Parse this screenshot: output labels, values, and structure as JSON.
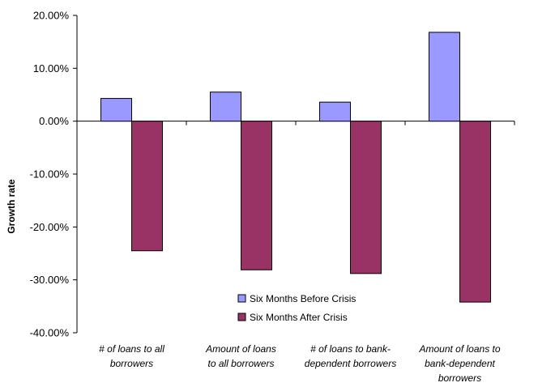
{
  "chart_data": {
    "type": "bar",
    "ylabel": "Growth rate",
    "ylim": [
      -0.4,
      0.2
    ],
    "ytick_step": 0.1,
    "ytick_labels": [
      "20.00%",
      "10.00%",
      "0.00%",
      "-10.00%",
      "-20.00%",
      "-30.00%",
      "-40.00%"
    ],
    "categories": [
      [
        "# of loans to all",
        "borrowers"
      ],
      [
        "Amount of loans",
        "to all borrowers"
      ],
      [
        "# of loans to bank-",
        "dependent borrowers"
      ],
      [
        "Amount of loans to",
        "bank-dependent",
        "borrowers"
      ]
    ],
    "series": [
      {
        "name": "Six Months Before Crisis",
        "values": [
          0.043,
          0.055,
          0.036,
          0.168
        ],
        "color": "#9999ff"
      },
      {
        "name": "Six Months After Crisis",
        "values": [
          -0.245,
          -0.281,
          -0.288,
          -0.342
        ],
        "color": "#993366"
      }
    ],
    "legend_position": "lower-center",
    "grid": false
  }
}
